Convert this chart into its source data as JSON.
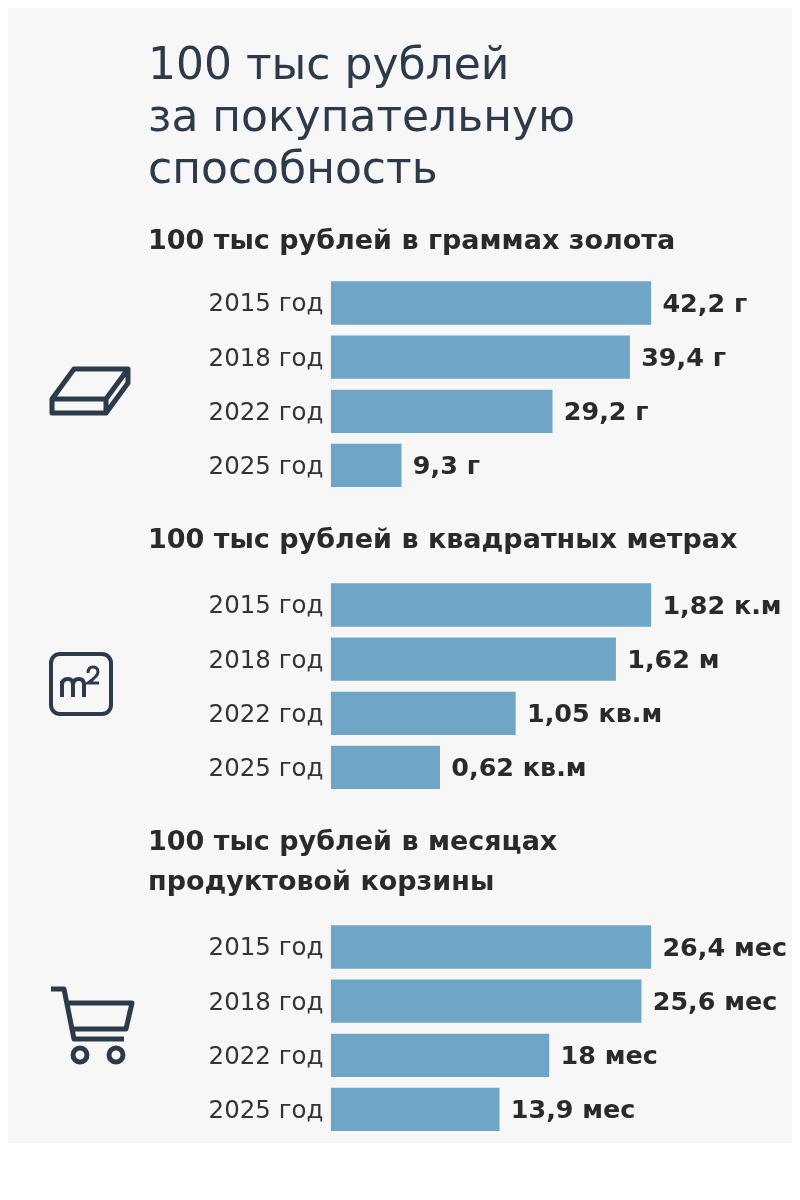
{
  "chart_data": [
    {
      "type": "bar",
      "orientation": "horizontal",
      "title": "100 тыс рублей\nза покупательную\nспособность",
      "subtitle": "100 тыс рублей в граммах золота",
      "categories": [
        "2015 год",
        "2018 год",
        "2022 год",
        "2025 год"
      ],
      "values": [
        42.2,
        39.4,
        29.2,
        9.3
      ],
      "value_labels": [
        "42,2 г",
        "39,4 г",
        "29,2 г",
        "9,3 г"
      ],
      "color": "#6fa5c6"
    },
    {
      "type": "bar",
      "orientation": "horizontal",
      "title": "100 тыс рублей в квадратных метрах",
      "categories": [
        "2015 год",
        "2018 год",
        "2022 год",
        "2025 год"
      ],
      "values": [
        1.82,
        1.62,
        1.05,
        0.62
      ],
      "value_labels": [
        "1,82 к.м",
        "1,62 м",
        "1,05 кв.м",
        "0,62 кв.м"
      ],
      "color": "#6fa5c6"
    },
    {
      "type": "bar",
      "orientation": "horizontal",
      "title": "100 тыс рублей в месяцах\nпродуктовой корзины",
      "categories": [
        "2015 год",
        "2018 год",
        "2022 год",
        "2025 год"
      ],
      "values": [
        26.4,
        25.6,
        18,
        13.9
      ],
      "value_labels": [
        "26,4 мес",
        "25,6 мес",
        "18 мес",
        "13,9 мес"
      ],
      "color": "#6fa5c6"
    }
  ]
}
